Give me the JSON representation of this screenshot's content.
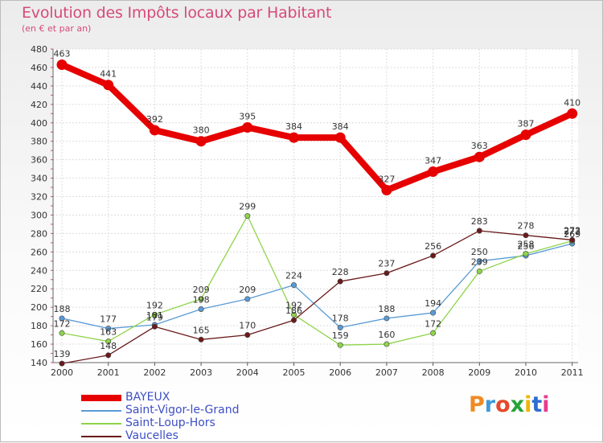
{
  "header": {
    "title": "Evolution des Impôts locaux par Habitant",
    "subtitle": "(en € et par an)"
  },
  "logo": {
    "text": "Proxiti",
    "colors": [
      "#f08a24",
      "#3f9ad9",
      "#e44a2a",
      "#27a33a",
      "#f0b400",
      "#2b6fd1",
      "#e63c8c"
    ]
  },
  "chart_data": {
    "type": "line",
    "categories": [
      "2000",
      "2001",
      "2002",
      "2003",
      "2004",
      "2005",
      "2006",
      "2007",
      "2008",
      "2009",
      "2010",
      "2011"
    ],
    "ylim": [
      140,
      480
    ],
    "y_ticks": [
      140,
      160,
      180,
      200,
      220,
      240,
      260,
      280,
      300,
      320,
      340,
      360,
      380,
      400,
      420,
      440,
      460,
      480
    ],
    "grid": true,
    "legend_position": "bottom-left",
    "series": [
      {
        "name": "BAYEUX",
        "color": "#e60000",
        "values": [
          463,
          441,
          392,
          380,
          395,
          384,
          384,
          327,
          347,
          363,
          387,
          410
        ]
      },
      {
        "name": "Saint-Vigor-le-Grand",
        "color": "#5b9bd5",
        "values": [
          188,
          177,
          181,
          198,
          209,
          224,
          178,
          188,
          194,
          250,
          256,
          269
        ]
      },
      {
        "name": "Saint-Loup-Hors",
        "color": "#8fd44a",
        "values": [
          172,
          163,
          192,
          209,
          299,
          192,
          159,
          160,
          172,
          239,
          258,
          272
        ]
      },
      {
        "name": "Vaucelles",
        "color": "#6a1a1a",
        "values": [
          139,
          148,
          179,
          165,
          170,
          186,
          228,
          237,
          256,
          283,
          278,
          273
        ]
      }
    ]
  }
}
